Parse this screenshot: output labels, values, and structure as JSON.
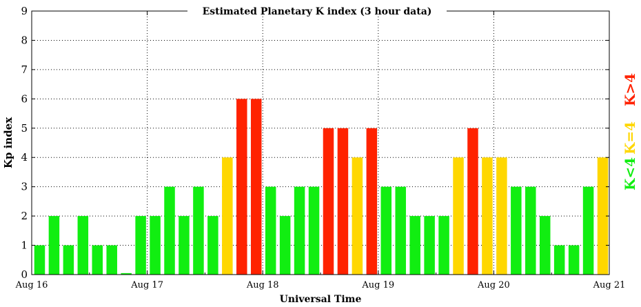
{
  "chart_data": {
    "type": "bar",
    "title": "Estimated Planetary K index (3 hour data)",
    "xlabel": "Universal Time",
    "ylabel": "Kp index",
    "ylim": [
      0,
      9
    ],
    "yticks": [
      "0",
      "1",
      "2",
      "3",
      "4",
      "5",
      "6",
      "7",
      "8",
      "9"
    ],
    "xticks": [
      "Aug 16",
      "Aug 17",
      "Aug 18",
      "Aug 19",
      "Aug 20",
      "Aug 21"
    ],
    "bars_per_day": 8,
    "grid": true,
    "values": [
      1,
      2,
      1,
      2,
      1,
      1,
      0.05,
      2,
      2,
      3,
      2,
      3,
      2,
      4,
      6,
      6,
      3,
      2,
      3,
      3,
      5,
      5,
      4,
      5,
      3,
      3,
      2,
      2,
      2,
      4,
      5,
      4,
      4,
      3,
      3,
      2,
      1,
      1,
      3,
      4
    ],
    "colors": {
      "low": "#11ee11",
      "mid": "#ffd700",
      "high": "#ff2200"
    },
    "legend": [
      {
        "label": "K<4",
        "color": "#11ee11"
      },
      {
        "label": "K=4",
        "color": "#ffd700"
      },
      {
        "label": "K>4",
        "color": "#ff2200"
      }
    ]
  }
}
